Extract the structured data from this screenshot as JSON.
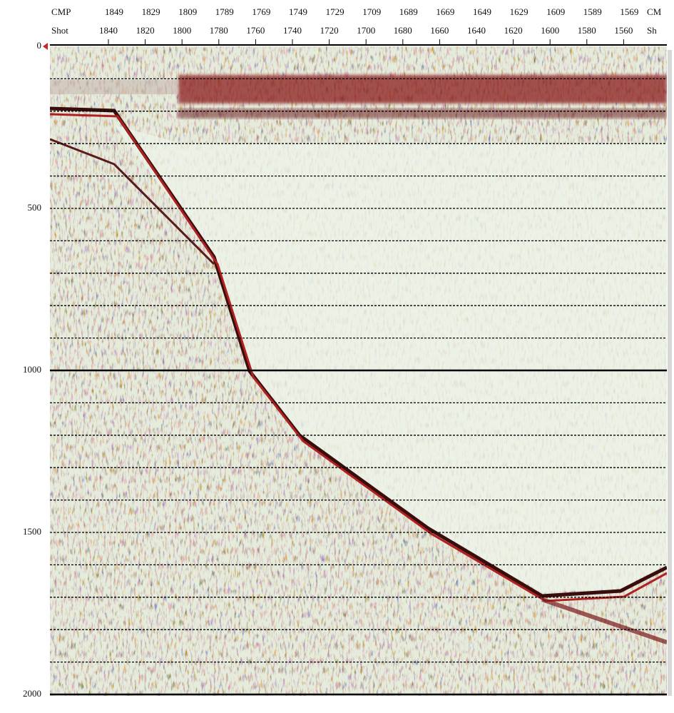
{
  "header": {
    "cmp_label": "CMP",
    "cmp_ticks": [
      1849,
      1829,
      1809,
      1789,
      1769,
      1749,
      1729,
      1709,
      1689,
      1669,
      1649,
      1629,
      1609,
      1589,
      1569
    ],
    "cmp_label_right": "CM",
    "shot_label": "Shot",
    "shot_ticks": [
      1840,
      1820,
      1800,
      1780,
      1760,
      1740,
      1720,
      1700,
      1680,
      1660,
      1640,
      1620,
      1600,
      1580,
      1560
    ],
    "shot_label_right": "Sh"
  },
  "time_axis": {
    "ticks": [
      0,
      500,
      1000,
      1500,
      2000
    ]
  }
}
